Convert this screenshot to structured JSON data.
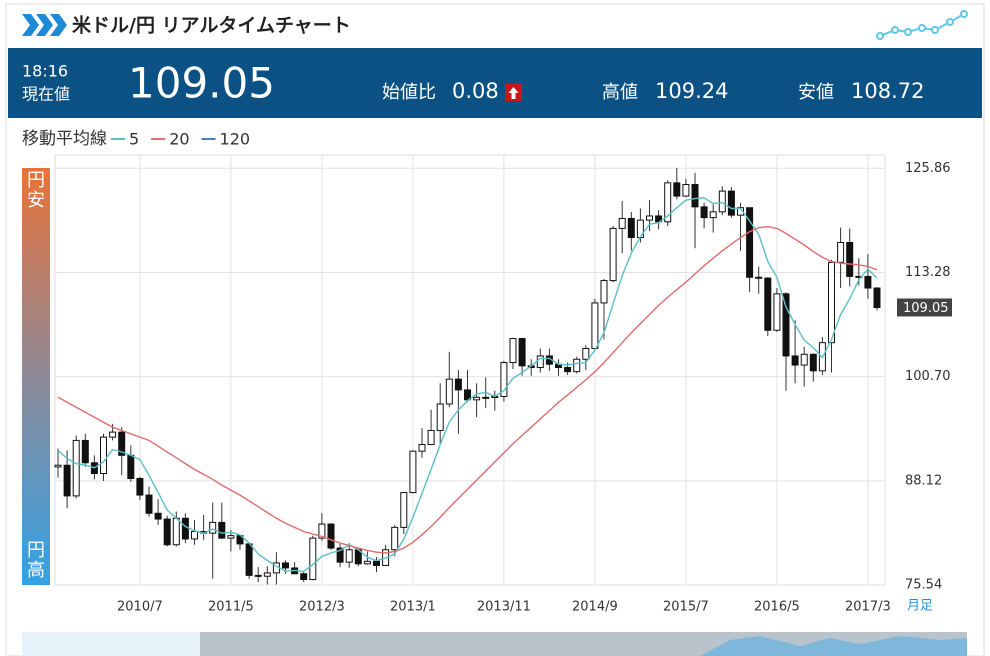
{
  "header": {
    "title": "米ドル/円 リアルタイムチャート",
    "time": "18:16",
    "price_label": "現在値",
    "price": 109.05,
    "change_label": "始値比",
    "change": 0.08,
    "high_label": "高値",
    "high": 109.24,
    "low_label": "安値",
    "low": 108.72
  },
  "side": {
    "top": "円安",
    "bottom": "円高"
  },
  "chart_data": {
    "type": "candlestick",
    "legend_title": "移動平均線",
    "period": "月足",
    "categories": [
      null,
      null,
      null,
      null,
      null,
      null,
      null,
      null,
      null,
      "2010/7",
      null,
      null,
      null,
      null,
      null,
      null,
      null,
      null,
      null,
      "2011/5",
      null,
      null,
      null,
      null,
      null,
      null,
      null,
      null,
      null,
      "2012/3",
      null,
      null,
      null,
      null,
      null,
      null,
      null,
      null,
      null,
      "2013/1",
      null,
      null,
      null,
      null,
      null,
      null,
      null,
      null,
      null,
      "2013/11",
      null,
      null,
      null,
      null,
      null,
      null,
      null,
      null,
      null,
      "2014/9",
      null,
      null,
      null,
      null,
      null,
      null,
      null,
      null,
      null,
      "2015/7",
      null,
      null,
      null,
      null,
      null,
      null,
      null,
      null,
      null,
      "2016/5",
      null,
      null,
      null,
      null,
      null,
      null,
      null,
      null,
      null,
      "2017/3",
      null
    ],
    "open": [
      89.8,
      90.0,
      86.3,
      93.0,
      90.3,
      89.0,
      93.4,
      94.0,
      91.2,
      88.4,
      86.4,
      84.2,
      83.5,
      80.4,
      83.6,
      81.1,
      82.0,
      81.8,
      83.1,
      81.2,
      81.5,
      80.5,
      76.7,
      76.6,
      77.0,
      78.2,
      77.6,
      76.9,
      76.2,
      81.2,
      82.9,
      80.0,
      78.3,
      79.8,
      78.1,
      78.4,
      77.9,
      79.8,
      82.5,
      86.7,
      91.7,
      92.5,
      94.2,
      97.4,
      100.4,
      99.1,
      97.9,
      98.2,
      98.2,
      98.3,
      102.4,
      105.3,
      102.0,
      101.8,
      103.2,
      102.2,
      101.8,
      101.3,
      102.8,
      104.1,
      109.6,
      112.3,
      118.6,
      119.8,
      117.5,
      119.6,
      120.1,
      119.4,
      124.1,
      122.5,
      123.9,
      121.2,
      119.9,
      120.6,
      123.1,
      120.2,
      121.1,
      112.7,
      112.6,
      106.3,
      110.7,
      103.2,
      102.1,
      103.4,
      101.4,
      104.8,
      114.5,
      116.9,
      112.8,
      112.8,
      111.4
    ],
    "high": [
      92.0,
      91.8,
      93.6,
      93.8,
      91.2,
      93.8,
      95.0,
      94.6,
      92.4,
      88.6,
      87.4,
      85.9,
      83.9,
      84.4,
      84.2,
      83.4,
      84.0,
      85.5,
      85.5,
      82.2,
      81.6,
      80.7,
      77.7,
      77.8,
      79.5,
      78.5,
      78.3,
      77.1,
      81.5,
      84.2,
      83.0,
      80.5,
      80.6,
      79.9,
      79.6,
      78.9,
      80.4,
      82.8,
      86.7,
      91.8,
      94.5,
      96.7,
      99.9,
      103.7,
      101.5,
      101.5,
      99.9,
      100.6,
      99.0,
      102.6,
      105.4,
      105.4,
      102.8,
      104.1,
      104.1,
      102.8,
      102.4,
      103.1,
      104.5,
      110.1,
      112.5,
      118.9,
      121.9,
      120.6,
      121.0,
      122.0,
      120.8,
      124.4,
      125.9,
      124.6,
      125.3,
      121.7,
      121.5,
      123.7,
      123.6,
      121.7,
      121.1,
      114.0,
      112.7,
      111.4,
      110.9,
      107.5,
      104.3,
      103.5,
      105.5,
      114.8,
      118.7,
      118.6,
      115.0,
      115.5,
      111.5
    ],
    "low": [
      88.5,
      84.8,
      86.0,
      89.8,
      88.3,
      88.1,
      93.0,
      88.8,
      88.0,
      85.8,
      83.8,
      82.8,
      80.2,
      80.2,
      80.6,
      80.4,
      81.0,
      76.3,
      81.1,
      79.6,
      79.8,
      76.3,
      75.9,
      75.6,
      75.6,
      76.9,
      76.9,
      75.9,
      76.1,
      80.9,
      79.8,
      77.7,
      77.6,
      77.8,
      78.0,
      77.1,
      77.9,
      79.0,
      81.7,
      86.6,
      90.9,
      92.5,
      92.6,
      97.0,
      93.8,
      97.6,
      95.8,
      96.9,
      96.6,
      97.7,
      101.6,
      100.8,
      100.8,
      101.2,
      101.4,
      100.8,
      100.9,
      101.1,
      101.5,
      104.0,
      105.2,
      112.1,
      115.6,
      115.9,
      116.9,
      118.3,
      118.5,
      118.9,
      122.1,
      122.4,
      116.2,
      118.6,
      118.1,
      120.2,
      119.9,
      115.9,
      110.9,
      110.7,
      105.6,
      106.1,
      99.0,
      99.9,
      99.5,
      100.1,
      100.9,
      101.2,
      111.4,
      111.6,
      111.7,
      110.1,
      108.72
    ],
    "close": [
      90.0,
      86.3,
      93.0,
      90.3,
      89.0,
      93.4,
      94.0,
      91.2,
      88.4,
      86.4,
      84.2,
      83.5,
      80.4,
      83.6,
      81.1,
      82.0,
      81.8,
      83.1,
      81.2,
      81.5,
      80.5,
      76.7,
      76.6,
      77.0,
      78.2,
      77.6,
      76.9,
      76.2,
      81.2,
      82.9,
      80.0,
      78.3,
      79.8,
      78.1,
      78.4,
      77.9,
      79.8,
      82.5,
      86.7,
      91.7,
      92.5,
      94.2,
      97.4,
      100.4,
      99.1,
      97.9,
      98.2,
      98.2,
      98.3,
      102.4,
      105.3,
      102.0,
      101.8,
      103.2,
      102.2,
      101.8,
      101.3,
      102.8,
      104.1,
      109.6,
      112.3,
      118.6,
      119.8,
      117.5,
      119.6,
      120.1,
      119.4,
      124.1,
      122.5,
      123.9,
      121.2,
      119.9,
      120.6,
      123.1,
      120.2,
      121.1,
      112.7,
      112.6,
      106.3,
      110.7,
      103.2,
      102.1,
      103.4,
      101.4,
      104.8,
      114.5,
      116.9,
      112.8,
      112.8,
      111.4,
      109.05
    ],
    "series": [
      {
        "name": "5",
        "color": "#5bbfc9",
        "values": [
          91.8,
          90.8,
          90.2,
          90.0,
          89.7,
          90.4,
          91.9,
          91.6,
          91.2,
          90.7,
          88.8,
          86.7,
          84.6,
          83.6,
          82.6,
          82.1,
          81.8,
          82.3,
          81.8,
          81.9,
          81.6,
          80.6,
          79.3,
          78.5,
          77.8,
          77.2,
          77.3,
          77.2,
          78.0,
          79.0,
          79.4,
          79.7,
          80.4,
          79.8,
          78.9,
          78.5,
          78.8,
          79.3,
          81.1,
          83.7,
          86.6,
          89.5,
          92.5,
          95.2,
          96.7,
          97.8,
          98.6,
          98.8,
          98.3,
          99.0,
          100.5,
          101.2,
          102.0,
          102.9,
          102.9,
          102.2,
          102.1,
          102.3,
          102.4,
          103.9,
          106.0,
          109.5,
          112.9,
          115.6,
          117.6,
          119.1,
          119.3,
          120.1,
          121.1,
          122.0,
          122.2,
          122.3,
          121.6,
          121.7,
          121.0,
          121.0,
          119.5,
          117.9,
          114.6,
          112.7,
          109.1,
          107.0,
          105.1,
          104.2,
          103.0,
          105.2,
          108.2,
          110.1,
          112.4,
          113.7,
          112.6
        ]
      },
      {
        "name": "20",
        "color": "#e06c6c",
        "values": [
          98.2,
          97.6,
          97.0,
          96.4,
          95.8,
          95.2,
          94.6,
          94.2,
          93.8,
          93.4,
          93.0,
          92.3,
          91.6,
          90.9,
          90.2,
          89.5,
          88.9,
          88.3,
          87.6,
          87.0,
          86.4,
          85.7,
          85.0,
          84.3,
          83.6,
          83.0,
          82.5,
          82.0,
          81.7,
          81.4,
          81.0,
          80.6,
          80.3,
          80.0,
          79.7,
          79.5,
          79.4,
          79.6,
          80.0,
          80.7,
          81.6,
          82.6,
          83.7,
          84.9,
          86.0,
          87.1,
          88.2,
          89.3,
          90.4,
          91.5,
          92.6,
          93.6,
          94.6,
          95.6,
          96.6,
          97.6,
          98.5,
          99.4,
          100.3,
          101.3,
          102.4,
          103.6,
          104.8,
          106.0,
          107.1,
          108.2,
          109.3,
          110.3,
          111.2,
          112.1,
          113.1,
          114.1,
          115.0,
          115.9,
          116.7,
          117.5,
          118.2,
          118.7,
          118.8,
          118.6,
          118.0,
          117.3,
          116.6,
          115.8,
          115.1,
          114.6,
          114.4,
          114.3,
          114.2,
          114.0,
          113.6
        ]
      },
      {
        "name": "120",
        "color": "#4a7fb5"
      }
    ],
    "ylim": [
      75.54,
      127.1
    ],
    "yticks": [
      75.54,
      88.12,
      {
        "value": 100.7,
        "label": "100.70"
      },
      113.28,
      125.86
    ],
    "grid": true,
    "up_color": "#ffffff",
    "down_color": "#111111"
  }
}
